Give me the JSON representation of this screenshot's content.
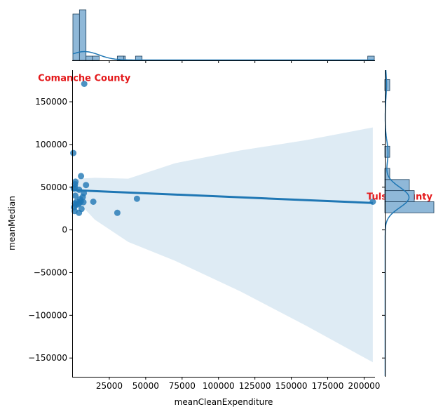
{
  "chart_data": {
    "type": "scatter",
    "subtype": "jointplot-regression",
    "xlabel": "meanCleanExpenditure",
    "ylabel": "meanMedian",
    "xlim": [
      0,
      207000
    ],
    "ylim": [
      -172000,
      187000
    ],
    "x_ticks": [
      25000,
      50000,
      75000,
      100000,
      125000,
      150000,
      175000,
      200000
    ],
    "y_ticks": [
      -150000,
      -100000,
      -50000,
      0,
      50000,
      100000,
      150000
    ],
    "x_tick_labels": [
      "25000",
      "50000",
      "75000",
      "100000",
      "125000",
      "150000",
      "175000",
      "200000"
    ],
    "y_tick_labels": [
      "−150000",
      "−100000",
      "−50000",
      "0",
      "50000",
      "100000",
      "150000"
    ],
    "points": [
      {
        "x": 7800,
        "y": 171000
      },
      {
        "x": 300,
        "y": 90000
      },
      {
        "x": 5600,
        "y": 63000
      },
      {
        "x": 1800,
        "y": 56500
      },
      {
        "x": 1500,
        "y": 53500
      },
      {
        "x": 9000,
        "y": 52500
      },
      {
        "x": 1400,
        "y": 50000
      },
      {
        "x": 600,
        "y": 48500
      },
      {
        "x": 4300,
        "y": 47000
      },
      {
        "x": 7500,
        "y": 43000
      },
      {
        "x": 1700,
        "y": 40000
      },
      {
        "x": 6800,
        "y": 38500
      },
      {
        "x": 5000,
        "y": 36000
      },
      {
        "x": 44000,
        "y": 36500
      },
      {
        "x": 2500,
        "y": 33000
      },
      {
        "x": 5500,
        "y": 33500
      },
      {
        "x": 14000,
        "y": 33000
      },
      {
        "x": 7200,
        "y": 32500
      },
      {
        "x": 1400,
        "y": 31000
      },
      {
        "x": 3600,
        "y": 30000
      },
      {
        "x": 4500,
        "y": 31500
      },
      {
        "x": 2000,
        "y": 29000
      },
      {
        "x": 800,
        "y": 26500
      },
      {
        "x": 5900,
        "y": 24500
      },
      {
        "x": 1200,
        "y": 22000
      },
      {
        "x": 4200,
        "y": 20000
      },
      {
        "x": 30500,
        "y": 20000
      },
      {
        "x": 206000,
        "y": 33000
      }
    ],
    "regression": {
      "line": {
        "x0": 0,
        "y0": 46500,
        "x1": 206000,
        "y1": 31500
      },
      "ci_upper": [
        [
          0,
          53000
        ],
        [
          4000,
          60000
        ],
        [
          15000,
          61000
        ],
        [
          38000,
          60000
        ],
        [
          70000,
          78000
        ],
        [
          115000,
          93000
        ],
        [
          160000,
          105000
        ],
        [
          206000,
          120000
        ]
      ],
      "ci_lower": [
        [
          206000,
          -155000
        ],
        [
          160000,
          -112000
        ],
        [
          115000,
          -72000
        ],
        [
          70000,
          -36000
        ],
        [
          38000,
          -14000
        ],
        [
          15000,
          12000
        ],
        [
          4000,
          32000
        ],
        [
          0,
          40000
        ]
      ]
    },
    "annotations": [
      {
        "text": "Comanche County",
        "x": 7800,
        "y": 171000
      },
      {
        "text": "Tulsa County",
        "x": 206000,
        "y": 37000
      }
    ],
    "marginal_x_hist": {
      "bin_width": 4500,
      "counts": [
        11,
        12,
        1,
        1,
        0,
        0,
        0,
        1,
        0,
        0,
        0,
        0,
        0,
        0,
        0,
        0,
        0,
        0,
        0,
        0,
        0,
        0,
        0,
        0,
        0,
        0,
        0,
        0,
        0,
        0,
        0,
        0,
        0,
        0,
        0,
        0,
        0,
        0,
        0,
        0,
        0,
        0,
        0,
        0,
        0,
        1
      ],
      "special_bins": [
        {
          "x0": 30500,
          "count": 1
        },
        {
          "x0": 43000,
          "count": 1
        }
      ]
    },
    "marginal_y_hist": {
      "bins": [
        {
          "y0": 20000,
          "y1": 33000,
          "count": 10
        },
        {
          "y0": 33000,
          "y1": 46000,
          "count": 6
        },
        {
          "y0": 46000,
          "y1": 59000,
          "count": 5
        },
        {
          "y0": 59000,
          "y1": 72000,
          "count": 1
        },
        {
          "y0": 85000,
          "y1": 98000,
          "count": 1
        },
        {
          "y0": 163000,
          "y1": 176000,
          "count": 1
        }
      ]
    },
    "colors": {
      "point": "#1f77b4",
      "line": "#1f77b4",
      "ci": "#1f77b4",
      "hist_fill": "#8fb8d8",
      "annotation": "#e41a1c"
    },
    "grid": false,
    "legend": "none"
  }
}
